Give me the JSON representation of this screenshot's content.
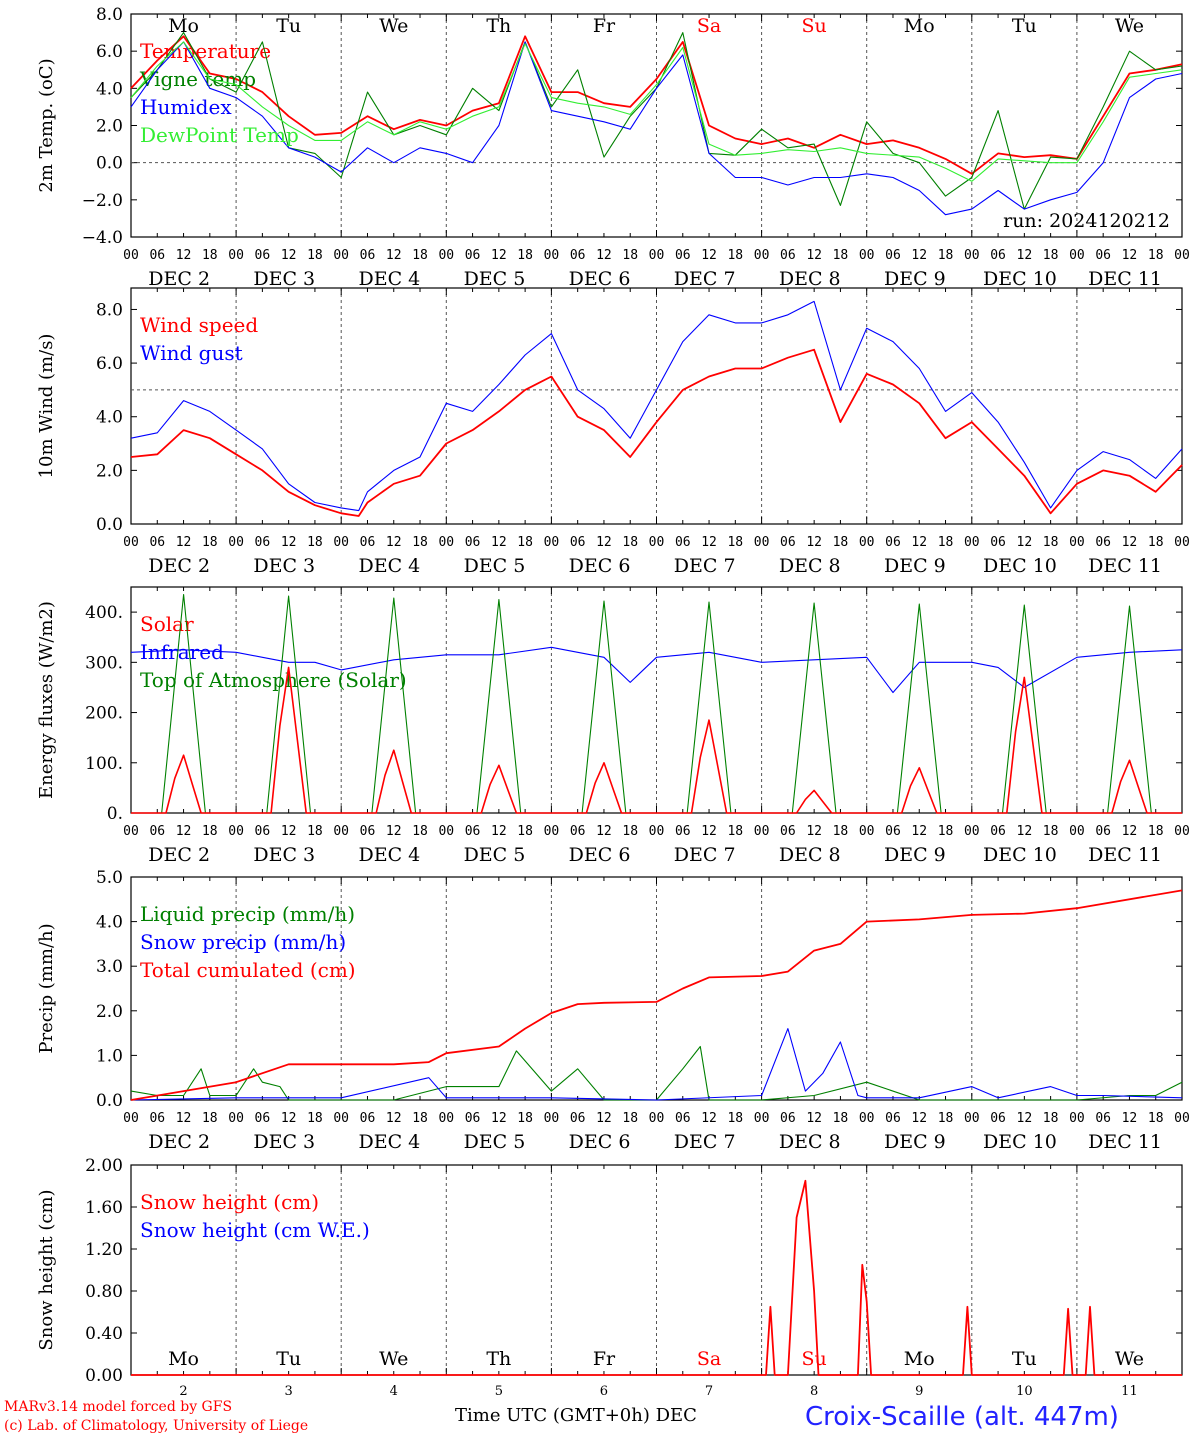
{
  "footer": {
    "credit_line1": "MARv3.14 model forced by GFS",
    "credit_line2": "(c) Lab. of Climatology, University of Liege",
    "time_label": "Time UTC (GMT+0h) DEC",
    "station": "Croix-Scaille (alt. 447m)"
  },
  "colors": {
    "red": "#ff0000",
    "green": "#008000",
    "blue": "#0000ff",
    "light_green": "#33ee33",
    "grid": "#555555"
  },
  "chart_data": [
    {
      "type": "line",
      "ylabel": "2m Temp. (oC)",
      "ylim": [
        -4,
        8
      ],
      "yticks": [
        "8.0",
        "6.0",
        "4.0",
        "2.0",
        "0.0",
        "−2.0",
        "−4.0"
      ],
      "hline": 0,
      "day_names": [
        "Mo",
        "Tu",
        "We",
        "Th",
        "Fr",
        "Sa",
        "Su",
        "Mo",
        "Tu",
        "We"
      ],
      "date_labels": [
        "DEC  2",
        "DEC  3",
        "DEC  4",
        "DEC  5",
        "DEC  6",
        "DEC  7",
        "DEC  8",
        "DEC  9",
        "DEC 10",
        "DEC 11"
      ],
      "hour_ticks": [
        "00",
        "06",
        "12",
        "18"
      ],
      "annotation": "run: 2024120212",
      "series": [
        {
          "name": "Temperature",
          "color": "red",
          "x": [
            0,
            6,
            12,
            18,
            24,
            30,
            36,
            42,
            48,
            54,
            60,
            66,
            72,
            78,
            84,
            90,
            96,
            102,
            108,
            114,
            120,
            126,
            132,
            138,
            144,
            150,
            156,
            162,
            168,
            174,
            180,
            186,
            192,
            198,
            204,
            210,
            216,
            222,
            228,
            234,
            240
          ],
          "y": [
            4.0,
            5.5,
            6.8,
            4.8,
            4.5,
            3.8,
            2.5,
            1.5,
            1.6,
            2.5,
            1.8,
            2.3,
            2.0,
            2.8,
            3.2,
            6.8,
            3.8,
            3.8,
            3.2,
            3.0,
            4.5,
            6.5,
            2.0,
            1.3,
            1.0,
            1.3,
            0.8,
            1.5,
            1.0,
            1.2,
            0.8,
            0.2,
            -0.6,
            0.5,
            0.3,
            0.4,
            0.2,
            2.5,
            4.8,
            5.0,
            5.3
          ]
        },
        {
          "name": "Vigne temp",
          "color": "green",
          "x": [
            0,
            6,
            12,
            18,
            24,
            30,
            36,
            42,
            48,
            54,
            60,
            66,
            72,
            78,
            84,
            90,
            96,
            102,
            108,
            114,
            120,
            126,
            132,
            138,
            144,
            150,
            156,
            162,
            168,
            174,
            180,
            186,
            192,
            198,
            204,
            210,
            216,
            222,
            228,
            234,
            240
          ],
          "y": [
            3.5,
            5.0,
            7.0,
            4.5,
            3.8,
            6.5,
            0.8,
            0.5,
            -0.8,
            3.8,
            1.5,
            2.0,
            1.5,
            4.0,
            2.8,
            6.5,
            3.0,
            5.0,
            0.3,
            2.5,
            4.0,
            7.0,
            0.5,
            0.4,
            1.8,
            0.8,
            1.0,
            -2.3,
            2.2,
            0.5,
            0.0,
            -1.8,
            -0.8,
            2.8,
            -2.5,
            0.3,
            0.2,
            3.0,
            6.0,
            5.0,
            5.2
          ]
        },
        {
          "name": "Humidex",
          "color": "blue",
          "x": [
            0,
            6,
            12,
            18,
            24,
            30,
            36,
            42,
            48,
            54,
            60,
            66,
            72,
            78,
            84,
            90,
            96,
            102,
            108,
            114,
            120,
            126,
            132,
            138,
            144,
            150,
            156,
            162,
            168,
            174,
            180,
            186,
            192,
            198,
            204,
            210,
            216,
            222,
            228,
            234,
            240
          ],
          "y": [
            3.0,
            5.0,
            6.5,
            4.0,
            3.5,
            2.5,
            0.8,
            0.3,
            -0.5,
            0.8,
            0.0,
            0.8,
            0.5,
            0.0,
            2.0,
            6.5,
            2.8,
            2.5,
            2.2,
            1.8,
            4.0,
            5.8,
            0.5,
            -0.8,
            -0.8,
            -1.2,
            -0.8,
            -0.8,
            -0.6,
            -0.8,
            -1.5,
            -2.8,
            -2.5,
            -1.5,
            -2.5,
            -2.0,
            -1.6,
            0.0,
            3.5,
            4.5,
            4.8
          ]
        },
        {
          "name": "DewPoint Temp",
          "color": "light_green",
          "x": [
            0,
            6,
            12,
            18,
            24,
            30,
            36,
            42,
            48,
            54,
            60,
            66,
            72,
            78,
            84,
            90,
            96,
            102,
            108,
            114,
            120,
            126,
            132,
            138,
            144,
            150,
            156,
            162,
            168,
            174,
            180,
            186,
            192,
            198,
            204,
            210,
            216,
            222,
            228,
            234,
            240
          ],
          "y": [
            3.5,
            5.2,
            6.5,
            4.5,
            4.2,
            3.0,
            2.0,
            1.2,
            1.2,
            2.2,
            1.5,
            2.2,
            1.8,
            2.5,
            3.0,
            6.4,
            3.5,
            3.2,
            3.0,
            2.6,
            4.2,
            6.2,
            1.0,
            0.4,
            0.5,
            0.7,
            0.6,
            0.8,
            0.5,
            0.4,
            0.3,
            -0.3,
            -1.0,
            0.2,
            0.1,
            0.0,
            0.0,
            2.2,
            4.6,
            4.8,
            5.0
          ]
        }
      ]
    },
    {
      "type": "line",
      "ylabel": "10m Wind (m/s)",
      "ylim": [
        0,
        8.8
      ],
      "yticks": [
        "8.0",
        "6.0",
        "4.0",
        "2.0",
        "0.0"
      ],
      "hline": 5,
      "date_labels": [
        "DEC  2",
        "DEC  3",
        "DEC  4",
        "DEC  5",
        "DEC  6",
        "DEC  7",
        "DEC  8",
        "DEC  9",
        "DEC 10",
        "DEC 11"
      ],
      "hour_ticks": [
        "00",
        "06",
        "12",
        "18"
      ],
      "series": [
        {
          "name": "Wind speed",
          "color": "red",
          "x": [
            0,
            6,
            12,
            18,
            24,
            30,
            36,
            42,
            48,
            52,
            54,
            60,
            66,
            72,
            78,
            84,
            90,
            96,
            102,
            108,
            114,
            120,
            126,
            132,
            138,
            144,
            150,
            156,
            162,
            168,
            174,
            180,
            186,
            192,
            198,
            204,
            210,
            216,
            222,
            228,
            234,
            240
          ],
          "y": [
            2.5,
            2.6,
            3.5,
            3.2,
            2.6,
            2.0,
            1.2,
            0.7,
            0.4,
            0.3,
            0.8,
            1.5,
            1.8,
            3.0,
            3.5,
            4.2,
            5.0,
            5.5,
            4.0,
            3.5,
            2.5,
            3.8,
            5.0,
            5.5,
            5.8,
            5.8,
            6.2,
            6.5,
            3.8,
            5.6,
            5.2,
            4.5,
            3.2,
            3.8,
            2.8,
            1.8,
            0.4,
            1.5,
            2.0,
            1.8,
            1.2,
            2.2
          ]
        },
        {
          "name": "Wind gust",
          "color": "blue",
          "x": [
            0,
            6,
            12,
            18,
            24,
            30,
            36,
            42,
            48,
            52,
            54,
            60,
            66,
            72,
            78,
            84,
            90,
            96,
            102,
            108,
            114,
            120,
            126,
            132,
            138,
            144,
            150,
            156,
            162,
            168,
            174,
            180,
            186,
            192,
            198,
            204,
            210,
            216,
            222,
            228,
            234,
            240
          ],
          "y": [
            3.2,
            3.4,
            4.6,
            4.2,
            3.5,
            2.8,
            1.5,
            0.8,
            0.6,
            0.5,
            1.2,
            2.0,
            2.5,
            4.5,
            4.2,
            5.2,
            6.3,
            7.1,
            5.0,
            4.3,
            3.2,
            5.0,
            6.8,
            7.8,
            7.5,
            7.5,
            7.8,
            8.3,
            5.0,
            7.3,
            6.8,
            5.8,
            4.2,
            4.9,
            3.8,
            2.3,
            0.6,
            2.0,
            2.7,
            2.4,
            1.7,
            2.8
          ]
        }
      ]
    },
    {
      "type": "line",
      "ylabel": "Energy fluxes (W/m2)",
      "ylim": [
        0,
        450
      ],
      "yticks": [
        "400.",
        "300.",
        "200.",
        "100.",
        "0."
      ],
      "date_labels": [
        "DEC  2",
        "DEC  3",
        "DEC  4",
        "DEC  5",
        "DEC  6",
        "DEC  7",
        "DEC  8",
        "DEC  9",
        "DEC 10",
        "DEC 11"
      ],
      "hour_ticks": [
        "00",
        "06",
        "12",
        "18"
      ],
      "daily_peak_solar": [
        115,
        290,
        125,
        95,
        100,
        185,
        45,
        90,
        270,
        105
      ],
      "daily_peak_toa": [
        435,
        432,
        428,
        425,
        422,
        420,
        418,
        416,
        414,
        412
      ],
      "series": [
        {
          "name": "Solar",
          "color": "red"
        },
        {
          "name": "Infrared",
          "color": "blue",
          "x": [
            0,
            12,
            24,
            30,
            36,
            42,
            48,
            60,
            72,
            84,
            96,
            108,
            114,
            120,
            132,
            144,
            156,
            168,
            174,
            180,
            192,
            198,
            204,
            216,
            228,
            240
          ],
          "y": [
            320,
            325,
            320,
            310,
            300,
            300,
            285,
            305,
            315,
            315,
            330,
            310,
            260,
            310,
            320,
            300,
            305,
            310,
            240,
            300,
            300,
            290,
            250,
            310,
            320,
            325
          ]
        },
        {
          "name": "Top of Atmosphere (Solar)",
          "color": "green"
        }
      ]
    },
    {
      "type": "line",
      "ylabel": "Precip (mm/h)",
      "ylim": [
        0,
        5
      ],
      "yticks": [
        "5.0",
        "4.0",
        "3.0",
        "2.0",
        "1.0",
        "0.0"
      ],
      "date_labels": [
        "DEC  2",
        "DEC  3",
        "DEC  4",
        "DEC  5",
        "DEC  6",
        "DEC  7",
        "DEC  8",
        "DEC  9",
        "DEC 10",
        "DEC 11"
      ],
      "hour_ticks": [
        "00",
        "06",
        "12",
        "18"
      ],
      "series": [
        {
          "name": "Liquid precip (mm/h)",
          "color": "green",
          "x": [
            0,
            6,
            12,
            16,
            18,
            24,
            28,
            30,
            34,
            36,
            48,
            60,
            72,
            84,
            88,
            96,
            102,
            108,
            114,
            120,
            126,
            130,
            132,
            138,
            144,
            156,
            168,
            180,
            192,
            204,
            216,
            228,
            234,
            240
          ],
          "y": [
            0.2,
            0.1,
            0.1,
            0.7,
            0.1,
            0.1,
            0.7,
            0.4,
            0.3,
            0.0,
            0.0,
            0.0,
            0.3,
            0.3,
            1.1,
            0.2,
            0.7,
            0.0,
            0.0,
            0.0,
            0.7,
            1.2,
            0.0,
            0.0,
            0.0,
            0.1,
            0.4,
            0.0,
            0.0,
            0.0,
            0.0,
            0.1,
            0.1,
            0.4
          ]
        },
        {
          "name": "Snow precip (mm/h)",
          "color": "blue",
          "x": [
            0,
            24,
            48,
            68,
            72,
            84,
            96,
            120,
            144,
            150,
            154,
            158,
            162,
            166,
            168,
            180,
            192,
            198,
            210,
            216,
            222,
            240
          ],
          "y": [
            0,
            0.05,
            0.05,
            0.5,
            0.05,
            0.05,
            0.05,
            0.0,
            0.1,
            1.6,
            0.2,
            0.6,
            1.3,
            0.1,
            0.05,
            0.05,
            0.3,
            0.05,
            0.3,
            0.1,
            0.1,
            0.05
          ]
        },
        {
          "name": "Total cumulated (cm)",
          "color": "red",
          "x": [
            0,
            12,
            24,
            36,
            48,
            60,
            68,
            72,
            84,
            90,
            96,
            102,
            108,
            120,
            126,
            132,
            144,
            150,
            156,
            162,
            168,
            180,
            192,
            204,
            216,
            240
          ],
          "y": [
            0,
            0.2,
            0.4,
            0.8,
            0.8,
            0.8,
            0.85,
            1.05,
            1.2,
            1.6,
            1.95,
            2.15,
            2.18,
            2.2,
            2.5,
            2.75,
            2.78,
            2.88,
            3.35,
            3.5,
            4.0,
            4.05,
            4.15,
            4.18,
            4.3,
            4.7
          ]
        }
      ]
    },
    {
      "type": "line",
      "ylabel": "Snow height (cm)",
      "ylim": [
        0,
        2
      ],
      "yticks": [
        "2.00",
        "1.60",
        "1.20",
        "0.80",
        "0.40",
        "0.00"
      ],
      "day_names": [
        "Mo",
        "Tu",
        "We",
        "Th",
        "Fr",
        "Sa",
        "Su",
        "Mo",
        "Tu",
        "We"
      ],
      "day_numbers": [
        "2",
        "3",
        "4",
        "5",
        "6",
        "7",
        "8",
        "9",
        "10",
        "11"
      ],
      "series": [
        {
          "name": "Snow height (cm)",
          "color": "red",
          "x": [
            0,
            145,
            146,
            147,
            150,
            152,
            154,
            156,
            157,
            166,
            167,
            168,
            169,
            190,
            191,
            192,
            213,
            214,
            215,
            218,
            219,
            220,
            240
          ],
          "y": [
            0,
            0,
            0.65,
            0,
            0,
            1.5,
            1.85,
            0.8,
            0,
            0,
            1.05,
            0.7,
            0,
            0,
            0.65,
            0,
            0,
            0.63,
            0,
            0,
            0.65,
            0,
            0
          ]
        },
        {
          "name": "Snow height (cm W.E.)",
          "color": "blue"
        }
      ]
    }
  ]
}
